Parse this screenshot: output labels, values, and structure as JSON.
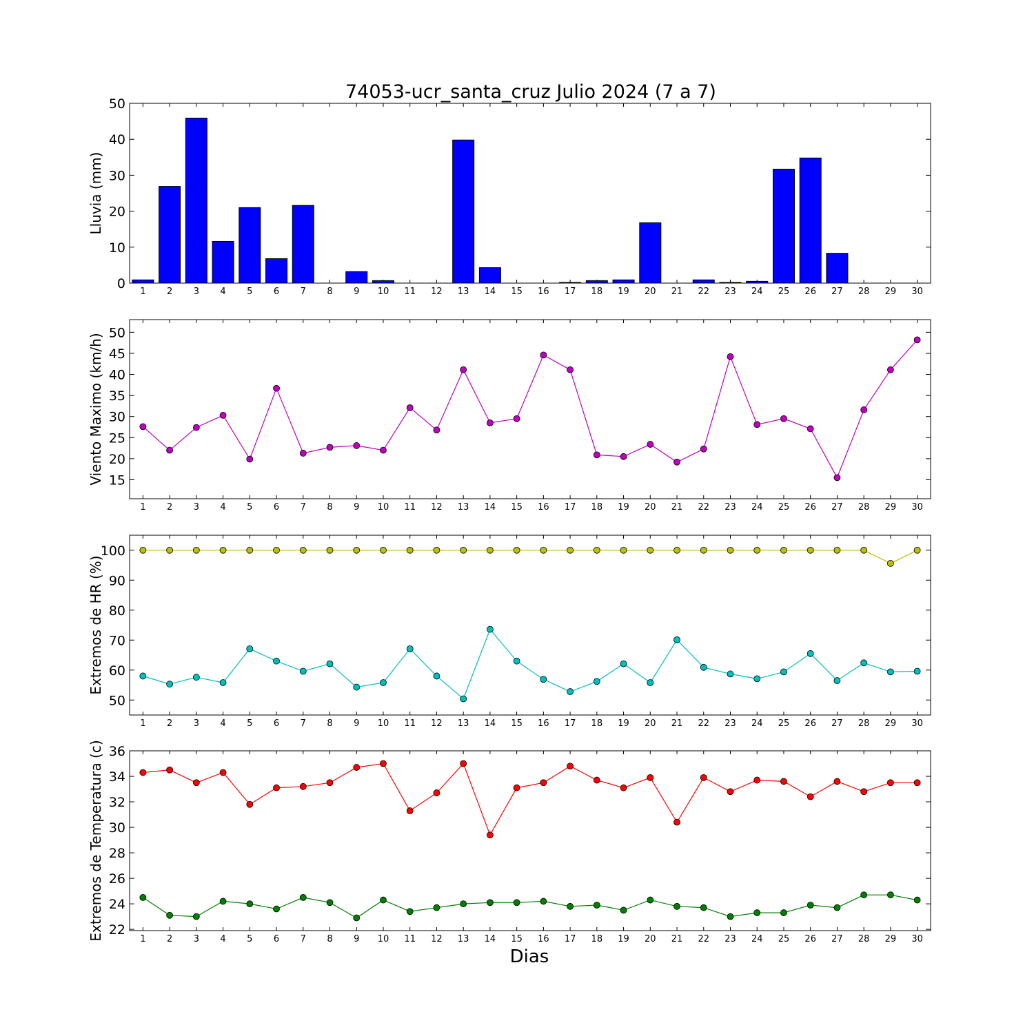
{
  "title": "74053-ucr_santa_cruz Julio 2024  (7 a 7)",
  "xlabel": "Dias",
  "chart_data": [
    {
      "type": "bar",
      "ylabel": "Lluvia (mm)",
      "ylim": [
        0,
        50
      ],
      "yticks": [
        0,
        10,
        20,
        30,
        40,
        50
      ],
      "xlim": [
        0.5,
        30.5
      ],
      "categories": [
        "1",
        "2",
        "3",
        "4",
        "5",
        "6",
        "7",
        "8",
        "9",
        "10",
        "11",
        "12",
        "13",
        "14",
        "15",
        "16",
        "17",
        "18",
        "19",
        "20",
        "21",
        "22",
        "23",
        "24",
        "25",
        "26",
        "27",
        "28",
        "29",
        "30"
      ],
      "series": [
        {
          "color": "#0000ff",
          "values": [
            0.9,
            26.9,
            45.9,
            11.6,
            21.0,
            6.8,
            21.6,
            0.0,
            3.2,
            0.7,
            0.0,
            0.0,
            39.8,
            4.3,
            0.0,
            0.0,
            0.2,
            0.7,
            0.9,
            16.8,
            0.0,
            0.9,
            0.2,
            0.5,
            31.7,
            34.8,
            8.3,
            0.0,
            0.0,
            0.0
          ]
        }
      ]
    },
    {
      "type": "line",
      "ylabel": "Viento Maximo (km/h)",
      "ylim": [
        10.5,
        53
      ],
      "yticks": [
        15,
        20,
        25,
        30,
        35,
        40,
        45,
        50
      ],
      "xlim": [
        0.5,
        30.5
      ],
      "categories": [
        "1",
        "2",
        "3",
        "4",
        "5",
        "6",
        "7",
        "8",
        "9",
        "10",
        "11",
        "12",
        "13",
        "14",
        "15",
        "16",
        "17",
        "18",
        "19",
        "20",
        "21",
        "22",
        "23",
        "24",
        "25",
        "26",
        "27",
        "28",
        "29",
        "30"
      ],
      "series": [
        {
          "color": "#bf00bf",
          "values": [
            27.6,
            22.0,
            27.4,
            30.3,
            19.9,
            36.7,
            21.3,
            22.7,
            23.1,
            22.0,
            32.1,
            26.8,
            41.1,
            28.5,
            29.5,
            44.6,
            41.1,
            20.9,
            20.5,
            23.4,
            19.2,
            22.3,
            44.2,
            28.1,
            29.5,
            27.1,
            15.5,
            31.6,
            41.1,
            48.2
          ]
        }
      ]
    },
    {
      "type": "line",
      "ylabel": "Extremos de HR (%)",
      "ylim": [
        45,
        105
      ],
      "yticks": [
        50,
        60,
        70,
        80,
        90,
        100
      ],
      "xlim": [
        0.5,
        30.5
      ],
      "categories": [
        "1",
        "2",
        "3",
        "4",
        "5",
        "6",
        "7",
        "8",
        "9",
        "10",
        "11",
        "12",
        "13",
        "14",
        "15",
        "16",
        "17",
        "18",
        "19",
        "20",
        "21",
        "22",
        "23",
        "24",
        "25",
        "26",
        "27",
        "28",
        "29",
        "30"
      ],
      "series": [
        {
          "color": "#bfbf00",
          "values": [
            100,
            100,
            100,
            100,
            100,
            100,
            100,
            100,
            100,
            100,
            100,
            100,
            100,
            100,
            100,
            100,
            100,
            100,
            100,
            100,
            100,
            100,
            100,
            100,
            100,
            100,
            100,
            100,
            95.6,
            100
          ]
        },
        {
          "color": "#00bfbf",
          "values": [
            58.0,
            55.3,
            57.6,
            55.8,
            67.1,
            63.0,
            59.6,
            62.1,
            54.3,
            55.8,
            67.1,
            58.0,
            50.4,
            73.6,
            63.0,
            56.9,
            52.8,
            56.2,
            62.1,
            55.8,
            70.1,
            60.9,
            58.7,
            57.1,
            59.4,
            65.5,
            56.5,
            62.4,
            59.4,
            59.6
          ]
        }
      ]
    },
    {
      "type": "line",
      "ylabel": "Extremos de Temperatura (c)",
      "ylim": [
        21.9,
        36
      ],
      "yticks": [
        22,
        24,
        26,
        28,
        30,
        32,
        34,
        36
      ],
      "xlim": [
        0.5,
        30.5
      ],
      "categories": [
        "1",
        "2",
        "3",
        "4",
        "5",
        "6",
        "7",
        "8",
        "9",
        "10",
        "11",
        "12",
        "13",
        "14",
        "15",
        "16",
        "17",
        "18",
        "19",
        "20",
        "21",
        "22",
        "23",
        "24",
        "25",
        "26",
        "27",
        "28",
        "29",
        "30"
      ],
      "series": [
        {
          "color": "#ff0000",
          "values": [
            34.3,
            34.5,
            33.5,
            34.3,
            31.8,
            33.1,
            33.2,
            33.5,
            34.7,
            35.0,
            31.3,
            32.7,
            35.0,
            29.4,
            33.1,
            33.5,
            34.8,
            33.7,
            33.1,
            33.9,
            30.4,
            33.9,
            32.8,
            33.7,
            33.6,
            32.4,
            33.6,
            32.8,
            33.5,
            33.5
          ]
        },
        {
          "color": "#008000",
          "values": [
            24.5,
            23.1,
            23.0,
            24.2,
            24.0,
            23.6,
            24.5,
            24.1,
            22.9,
            24.3,
            23.4,
            23.7,
            24.0,
            24.1,
            24.1,
            24.2,
            23.8,
            23.9,
            23.5,
            24.3,
            23.8,
            23.7,
            23.0,
            23.3,
            23.3,
            23.9,
            23.7,
            24.7,
            24.7,
            24.3
          ]
        }
      ]
    }
  ]
}
